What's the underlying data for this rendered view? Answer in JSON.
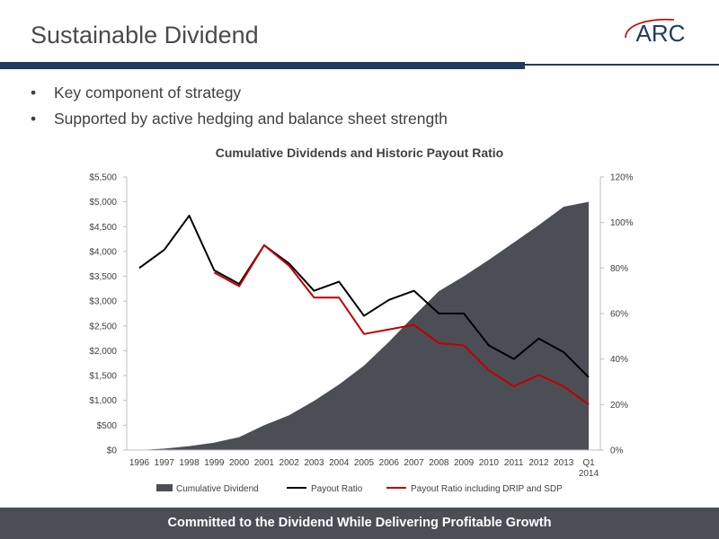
{
  "slide": {
    "title": "Sustainable Dividend",
    "logo_text": "ARC",
    "bullets": [
      "Key component of strategy",
      "Supported by active hedging and balance sheet strength"
    ],
    "footer": "Committed to the Dividend While Delivering Profitable Growth"
  },
  "colors": {
    "header_bar": "#1f3d60",
    "area": "#4c4e55",
    "payout": "#000000",
    "payout_drip": "#c00000",
    "logo": "#1f3d60",
    "logo_swoosh": "#c00000"
  },
  "chart_data": {
    "type": "area",
    "title": "Cumulative Dividends and Historic Payout Ratio",
    "categories": [
      "1996",
      "1997",
      "1998",
      "1999",
      "2000",
      "2001",
      "2002",
      "2003",
      "2004",
      "2005",
      "2006",
      "2007",
      "2008",
      "2009",
      "2010",
      "2011",
      "2012",
      "2013",
      "Q1\n2014"
    ],
    "y_left": {
      "ticks": [
        "$0",
        "$500",
        "$1,000",
        "$1,500",
        "$2,000",
        "$2,500",
        "$3,000",
        "$3,500",
        "$4,000",
        "$4,500",
        "$5,000",
        "$5,500"
      ],
      "range": [
        0,
        5500
      ]
    },
    "y_right": {
      "ticks": [
        "0%",
        "20%",
        "40%",
        "60%",
        "80%",
        "100%",
        "120%"
      ],
      "range": [
        0,
        120
      ]
    },
    "series": [
      {
        "name": "Cumulative Dividend",
        "type": "area",
        "axis": "left",
        "x": [
          0,
          1,
          2,
          3,
          4,
          5,
          6,
          7,
          8,
          9,
          10,
          11,
          12,
          13,
          14,
          15,
          16,
          17,
          17.5,
          18
        ],
        "values": [
          0,
          30,
          80,
          150,
          260,
          500,
          700,
          990,
          1320,
          1700,
          2180,
          2700,
          3200,
          3500,
          3830,
          4180,
          4530,
          4900,
          4950,
          5000
        ]
      },
      {
        "name": "Payout Ratio",
        "type": "line",
        "axis": "right",
        "x": [
          0,
          1,
          2,
          3,
          4,
          5,
          6,
          7,
          8,
          9,
          10,
          11,
          12,
          13,
          14,
          15,
          16,
          17,
          18
        ],
        "values": [
          80,
          88,
          103,
          79,
          73,
          90,
          82,
          70,
          74,
          59,
          66,
          70,
          60,
          60,
          46,
          40,
          49,
          43,
          32
        ]
      },
      {
        "name": "Payout Ratio including DRIP and SDP",
        "type": "line",
        "axis": "right",
        "x": [
          3,
          4,
          5,
          6,
          7,
          8,
          9,
          10,
          11,
          12,
          13,
          14,
          15,
          16,
          17,
          18
        ],
        "values": [
          78,
          72,
          90,
          81,
          67,
          67,
          51,
          53,
          55,
          47,
          46,
          35,
          28,
          33,
          28,
          20
        ]
      }
    ],
    "legend": "bottom",
    "grid": false
  }
}
